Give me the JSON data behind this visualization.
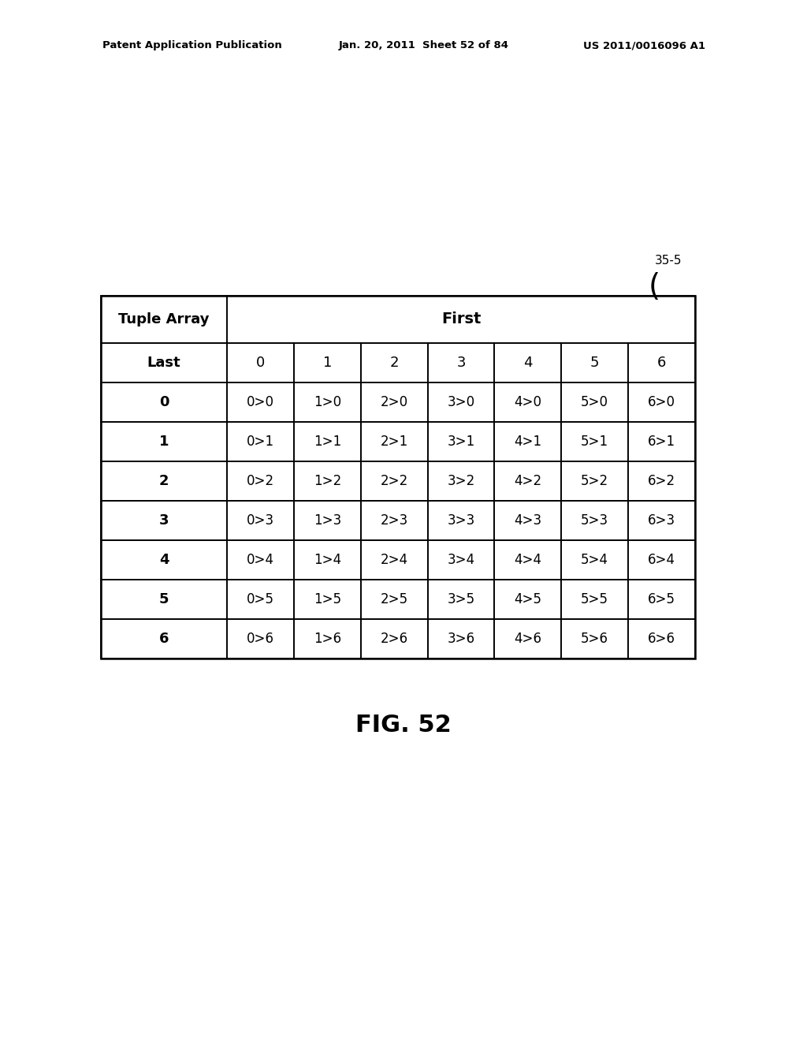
{
  "header_left": "Patent Application Publication",
  "header_mid": "Jan. 20, 2011  Sheet 52 of 84",
  "header_right": "US 2011/0016096 A1",
  "fig_label": "FIG. 52",
  "label_35_5": "35-5",
  "table_title_left": "Tuple Array",
  "table_title_right": "First",
  "col_header": [
    "Last",
    "0",
    "1",
    "2",
    "3",
    "4",
    "5",
    "6"
  ],
  "row_headers": [
    "0",
    "1",
    "2",
    "3",
    "4",
    "5",
    "6"
  ],
  "cell_data": [
    [
      "0>0",
      "1>0",
      "2>0",
      "3>0",
      "4>0",
      "5>0",
      "6>0"
    ],
    [
      "0>1",
      "1>1",
      "2>1",
      "3>1",
      "4>1",
      "5>1",
      "6>1"
    ],
    [
      "0>2",
      "1>2",
      "2>2",
      "3>2",
      "4>2",
      "5>2",
      "6>2"
    ],
    [
      "0>3",
      "1>3",
      "2>3",
      "3>3",
      "4>3",
      "5>3",
      "6>3"
    ],
    [
      "0>4",
      "1>4",
      "2>4",
      "3>4",
      "4>4",
      "5>4",
      "6>4"
    ],
    [
      "0>5",
      "1>5",
      "2>5",
      "3>5",
      "4>5",
      "5>5",
      "6>5"
    ],
    [
      "0>6",
      "1>6",
      "2>6",
      "3>6",
      "4>6",
      "5>6",
      "6>6"
    ]
  ],
  "bg_color": "#ffffff",
  "text_color": "#000000",
  "line_color": "#000000",
  "header_fontsize": 9.5,
  "table_fontsize": 13,
  "fig_label_fontsize": 22,
  "label_35_5_fontsize": 11
}
